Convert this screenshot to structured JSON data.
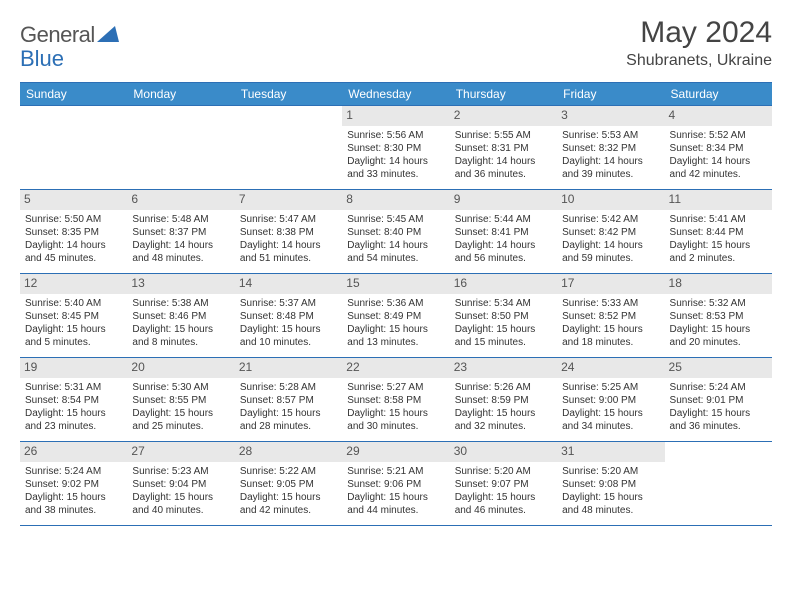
{
  "logo": {
    "text_left": "General",
    "text_right": "Blue",
    "icon_color": "#2c6fb5"
  },
  "header": {
    "month": "May 2024",
    "location": "Shubranets, Ukraine"
  },
  "colors": {
    "header_bg": "#3a8bc9",
    "header_text": "#ffffff",
    "border": "#2c6fb5",
    "daynum_bg": "#e8e8e8",
    "text": "#333333"
  },
  "weekdays": [
    "Sunday",
    "Monday",
    "Tuesday",
    "Wednesday",
    "Thursday",
    "Friday",
    "Saturday"
  ],
  "weeks": [
    [
      null,
      null,
      null,
      {
        "n": "1",
        "sr": "5:56 AM",
        "ss": "8:30 PM",
        "dl": "14 hours and 33 minutes."
      },
      {
        "n": "2",
        "sr": "5:55 AM",
        "ss": "8:31 PM",
        "dl": "14 hours and 36 minutes."
      },
      {
        "n": "3",
        "sr": "5:53 AM",
        "ss": "8:32 PM",
        "dl": "14 hours and 39 minutes."
      },
      {
        "n": "4",
        "sr": "5:52 AM",
        "ss": "8:34 PM",
        "dl": "14 hours and 42 minutes."
      }
    ],
    [
      {
        "n": "5",
        "sr": "5:50 AM",
        "ss": "8:35 PM",
        "dl": "14 hours and 45 minutes."
      },
      {
        "n": "6",
        "sr": "5:48 AM",
        "ss": "8:37 PM",
        "dl": "14 hours and 48 minutes."
      },
      {
        "n": "7",
        "sr": "5:47 AM",
        "ss": "8:38 PM",
        "dl": "14 hours and 51 minutes."
      },
      {
        "n": "8",
        "sr": "5:45 AM",
        "ss": "8:40 PM",
        "dl": "14 hours and 54 minutes."
      },
      {
        "n": "9",
        "sr": "5:44 AM",
        "ss": "8:41 PM",
        "dl": "14 hours and 56 minutes."
      },
      {
        "n": "10",
        "sr": "5:42 AM",
        "ss": "8:42 PM",
        "dl": "14 hours and 59 minutes."
      },
      {
        "n": "11",
        "sr": "5:41 AM",
        "ss": "8:44 PM",
        "dl": "15 hours and 2 minutes."
      }
    ],
    [
      {
        "n": "12",
        "sr": "5:40 AM",
        "ss": "8:45 PM",
        "dl": "15 hours and 5 minutes."
      },
      {
        "n": "13",
        "sr": "5:38 AM",
        "ss": "8:46 PM",
        "dl": "15 hours and 8 minutes."
      },
      {
        "n": "14",
        "sr": "5:37 AM",
        "ss": "8:48 PM",
        "dl": "15 hours and 10 minutes."
      },
      {
        "n": "15",
        "sr": "5:36 AM",
        "ss": "8:49 PM",
        "dl": "15 hours and 13 minutes."
      },
      {
        "n": "16",
        "sr": "5:34 AM",
        "ss": "8:50 PM",
        "dl": "15 hours and 15 minutes."
      },
      {
        "n": "17",
        "sr": "5:33 AM",
        "ss": "8:52 PM",
        "dl": "15 hours and 18 minutes."
      },
      {
        "n": "18",
        "sr": "5:32 AM",
        "ss": "8:53 PM",
        "dl": "15 hours and 20 minutes."
      }
    ],
    [
      {
        "n": "19",
        "sr": "5:31 AM",
        "ss": "8:54 PM",
        "dl": "15 hours and 23 minutes."
      },
      {
        "n": "20",
        "sr": "5:30 AM",
        "ss": "8:55 PM",
        "dl": "15 hours and 25 minutes."
      },
      {
        "n": "21",
        "sr": "5:28 AM",
        "ss": "8:57 PM",
        "dl": "15 hours and 28 minutes."
      },
      {
        "n": "22",
        "sr": "5:27 AM",
        "ss": "8:58 PM",
        "dl": "15 hours and 30 minutes."
      },
      {
        "n": "23",
        "sr": "5:26 AM",
        "ss": "8:59 PM",
        "dl": "15 hours and 32 minutes."
      },
      {
        "n": "24",
        "sr": "5:25 AM",
        "ss": "9:00 PM",
        "dl": "15 hours and 34 minutes."
      },
      {
        "n": "25",
        "sr": "5:24 AM",
        "ss": "9:01 PM",
        "dl": "15 hours and 36 minutes."
      }
    ],
    [
      {
        "n": "26",
        "sr": "5:24 AM",
        "ss": "9:02 PM",
        "dl": "15 hours and 38 minutes."
      },
      {
        "n": "27",
        "sr": "5:23 AM",
        "ss": "9:04 PM",
        "dl": "15 hours and 40 minutes."
      },
      {
        "n": "28",
        "sr": "5:22 AM",
        "ss": "9:05 PM",
        "dl": "15 hours and 42 minutes."
      },
      {
        "n": "29",
        "sr": "5:21 AM",
        "ss": "9:06 PM",
        "dl": "15 hours and 44 minutes."
      },
      {
        "n": "30",
        "sr": "5:20 AM",
        "ss": "9:07 PM",
        "dl": "15 hours and 46 minutes."
      },
      {
        "n": "31",
        "sr": "5:20 AM",
        "ss": "9:08 PM",
        "dl": "15 hours and 48 minutes."
      },
      null
    ]
  ],
  "labels": {
    "sunrise": "Sunrise:",
    "sunset": "Sunset:",
    "daylight": "Daylight:"
  }
}
